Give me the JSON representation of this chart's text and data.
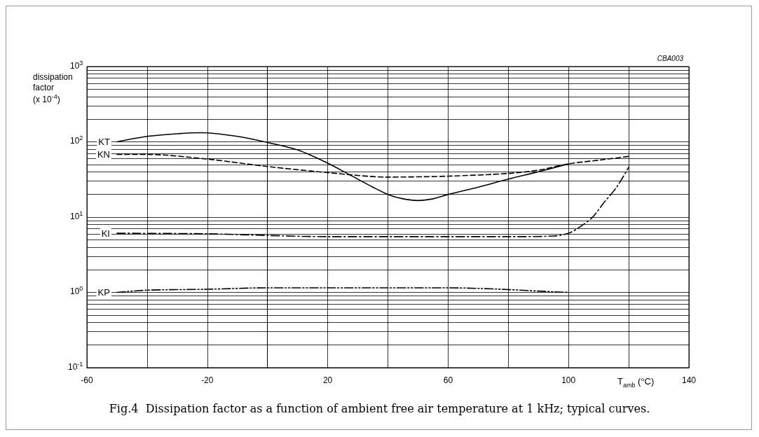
{
  "chart_data": {
    "type": "line",
    "title": "Fig.4  Dissipation factor as a function of ambient free air temperature at 1 kHz; typical curves.",
    "xlabel": "T$_{amb}$ (°C)",
    "ylabel": "dissipation\nfactor\n(x 10$^{-4}$)",
    "annotations": [
      "CBA003"
    ],
    "log": "y",
    "grid": true,
    "legend": false,
    "marker": "none",
    "xlim": [
      -60,
      140
    ],
    "xticks": [
      -60,
      {
        "value": -40,
        "label": null
      },
      -20,
      {
        "value": 0,
        "label": null
      },
      20,
      {
        "value": 40,
        "label": null
      },
      60,
      {
        "value": 80,
        "label": null
      },
      100,
      {
        "value": 120,
        "label": null
      },
      140
    ],
    "ylim": [
      0.1,
      1000
    ],
    "yticks": [
      {
        "value": 0.1,
        "label": "10$^{-1}$"
      },
      {
        "value": 0.2,
        "label": null
      },
      {
        "value": 0.3,
        "label": null
      },
      {
        "value": 0.4,
        "label": null
      },
      {
        "value": 0.5,
        "label": null
      },
      {
        "value": 0.6,
        "label": null
      },
      {
        "value": 0.7,
        "label": null
      },
      {
        "value": 0.8,
        "label": null
      },
      {
        "value": 0.9,
        "label": null
      },
      {
        "value": 1,
        "label": "10$^{0}$"
      },
      {
        "value": 2,
        "label": null
      },
      {
        "value": 3,
        "label": null
      },
      {
        "value": 4,
        "label": null
      },
      {
        "value": 5,
        "label": null
      },
      {
        "value": 6,
        "label": null
      },
      {
        "value": 7,
        "label": null
      },
      {
        "value": 8,
        "label": null
      },
      {
        "value": 9,
        "label": null
      },
      {
        "value": 10,
        "label": "10$^{1}$"
      },
      {
        "value": 20,
        "label": null
      },
      {
        "value": 30,
        "label": null
      },
      {
        "value": 40,
        "label": null
      },
      {
        "value": 50,
        "label": null
      },
      {
        "value": 60,
        "label": null
      },
      {
        "value": 70,
        "label": null
      },
      {
        "value": 80,
        "label": null
      },
      {
        "value": 90,
        "label": null
      },
      {
        "value": 100,
        "label": "10$^{2}$"
      },
      {
        "value": 200,
        "label": null
      },
      {
        "value": 300,
        "label": null
      },
      {
        "value": 400,
        "label": null
      },
      {
        "value": 500,
        "label": null
      },
      {
        "value": 600,
        "label": null
      },
      {
        "value": 700,
        "label": null
      },
      {
        "value": 800,
        "label": null
      },
      {
        "value": 900,
        "label": null
      },
      {
        "value": 1000,
        "label": "10$^{3}$"
      }
    ],
    "series": [
      {
        "name": "KT",
        "color": "#000000",
        "line_style": "solid",
        "x": [
          -50,
          -40,
          -30,
          -22,
          -10,
          0,
          10,
          20,
          27,
          35,
          40,
          45,
          50,
          55,
          60,
          70,
          80,
          90,
          100
        ],
        "values": [
          100,
          118,
          128,
          132,
          118,
          98,
          78,
          52,
          37,
          25,
          20,
          17.5,
          16.6,
          17.5,
          20,
          25,
          32,
          40,
          51
        ]
      },
      {
        "name": "KN",
        "color": "#000000",
        "line_style": "dashed",
        "x": [
          -50,
          -40,
          -20,
          0,
          20,
          40,
          60,
          80,
          90,
          100,
          110,
          120
        ],
        "values": [
          68,
          68,
          59,
          47,
          39,
          34,
          35,
          38,
          42,
          51,
          57,
          64
        ]
      },
      {
        "name": "KI",
        "color": "#000000",
        "line_style": "dashdot",
        "x": [
          -50,
          -20,
          0,
          20,
          40,
          60,
          80,
          95,
          100,
          104,
          108,
          112,
          116,
          120
        ],
        "values": [
          6.1,
          6,
          5.7,
          5.5,
          5.5,
          5.5,
          5.5,
          5.6,
          6.1,
          7.5,
          10,
          16,
          25,
          46
        ]
      },
      {
        "name": "KP",
        "color": "#000000",
        "line_style": "dashdotdot",
        "x": [
          -50,
          -40,
          -20,
          0,
          20,
          40,
          60,
          70,
          80,
          90,
          100
        ],
        "values": [
          1,
          1.07,
          1.1,
          1.15,
          1.15,
          1.15,
          1.15,
          1.13,
          1.09,
          1.04,
          1
        ]
      }
    ]
  }
}
